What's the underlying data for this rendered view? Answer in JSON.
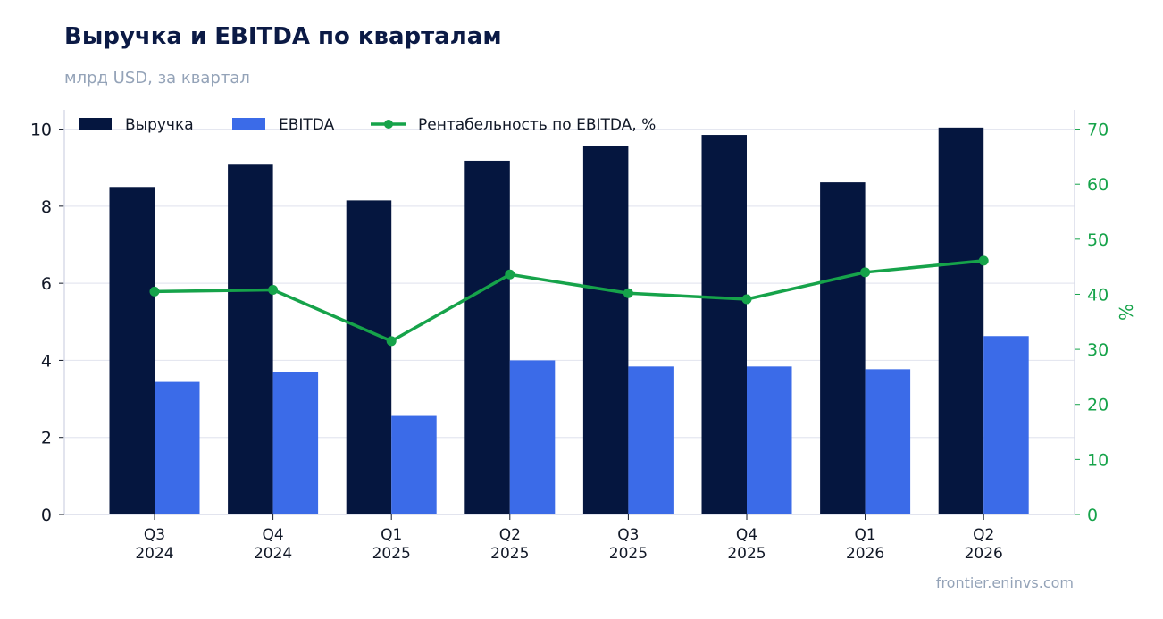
{
  "title": "Выручка и EBITDA по кварталам",
  "subtitle": "млрд USD, за квартал",
  "source": "frontier.eninvs.com",
  "colors": {
    "revenue": "#05163f",
    "ebitda": "#3b6be8",
    "margin": "#16a34a",
    "grid": "#e5e7f0",
    "axis": "#d8dbe8",
    "text": "#111827"
  },
  "chart_data": {
    "type": "bar",
    "categories": [
      "Q3\n2024",
      "Q4\n2024",
      "Q1\n2025",
      "Q2\n2025",
      "Q3\n2025",
      "Q4\n2025",
      "Q1\n2026",
      "Q2\n2026"
    ],
    "series": [
      {
        "name": "Выручка",
        "type": "bar",
        "axis": "left",
        "values": [
          8.5,
          9.08,
          8.15,
          9.18,
          9.55,
          9.85,
          8.62,
          10.04
        ]
      },
      {
        "name": "EBITDA",
        "type": "bar",
        "axis": "left",
        "values": [
          3.44,
          3.7,
          2.56,
          4.0,
          3.84,
          3.84,
          3.77,
          4.63
        ]
      },
      {
        "name": "Рентабельность по EBITDA, %",
        "type": "line",
        "axis": "right",
        "values": [
          40.5,
          40.8,
          31.5,
          43.6,
          40.2,
          39.1,
          44.0,
          46.1
        ]
      }
    ],
    "ylim": [
      0,
      10.5
    ],
    "yticks": [
      0,
      2,
      4,
      6,
      8,
      10
    ],
    "y2lim": [
      0,
      73.5
    ],
    "y2ticks": [
      0,
      10,
      20,
      30,
      40,
      50,
      60,
      70
    ],
    "y2label": "%",
    "legend": "top-left",
    "grid": true
  }
}
